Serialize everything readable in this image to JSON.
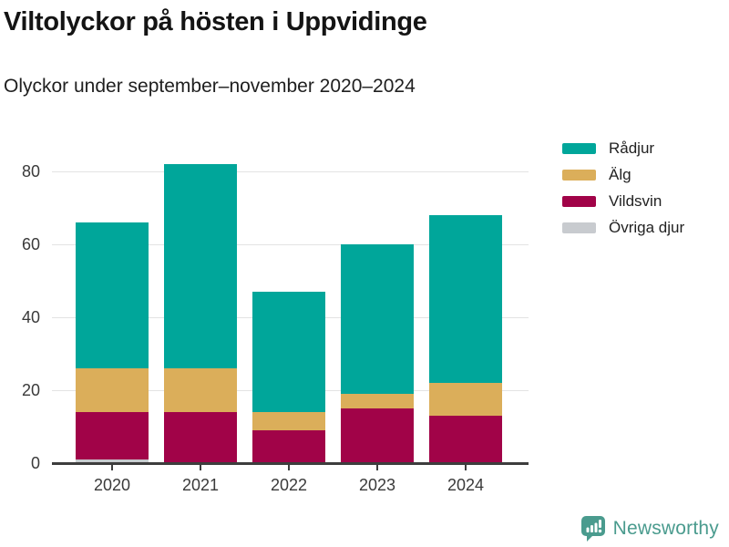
{
  "header": {
    "title": "Viltolyckor på hösten i Uppvidinge",
    "subtitle": "Olyckor under september–november 2020–2024"
  },
  "chart_data": {
    "type": "bar",
    "stacked": true,
    "title": "Viltolyckor på hösten i Uppvidinge",
    "subtitle": "Olyckor under september–november 2020–2024",
    "categories": [
      "2020",
      "2021",
      "2022",
      "2023",
      "2024"
    ],
    "series": [
      {
        "name": "Rådjur",
        "color": "#00a69a",
        "values": [
          40,
          56,
          33,
          41,
          46
        ]
      },
      {
        "name": "Älg",
        "color": "#dbae5a",
        "values": [
          12,
          12,
          5,
          4,
          9
        ]
      },
      {
        "name": "Vildsvin",
        "color": "#a10348",
        "values": [
          13,
          14,
          9,
          15,
          13
        ]
      },
      {
        "name": "Övriga djur",
        "color": "#c8cbcf",
        "values": [
          1,
          0,
          0,
          0,
          0
        ]
      }
    ],
    "totals": [
      66,
      82,
      47,
      60,
      68
    ],
    "xlabel": "",
    "ylabel": "",
    "ylim": [
      0,
      87
    ],
    "yticks": [
      0,
      20,
      40,
      60,
      80
    ],
    "grid": true,
    "legend_position": "right",
    "colors": {
      "grid": "#e3e3e3",
      "axis": "#3d3d3d",
      "axis_text": "#3a3a3a"
    }
  },
  "footer": {
    "brand": "Newsworthy",
    "brand_color": "#4a9b8e"
  }
}
